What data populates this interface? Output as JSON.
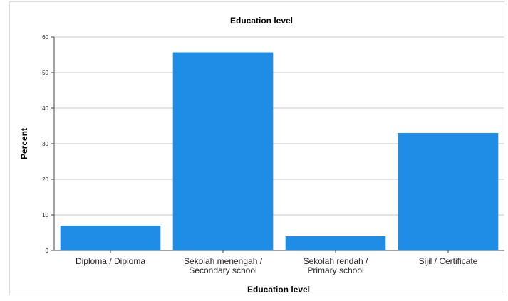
{
  "chart_data": {
    "type": "bar",
    "title": "Education level",
    "xlabel": "Education level",
    "ylabel": "Percent",
    "categories": [
      [
        "Diploma / Diploma"
      ],
      [
        "Sekolah menengah /",
        "Secondary school"
      ],
      [
        "Sekolah rendah /",
        "Primary school"
      ],
      [
        "Sijil / Certificate"
      ]
    ],
    "values": [
      7,
      55.7,
      4,
      33
    ],
    "ylim": [
      0,
      60
    ],
    "yticks": [
      0,
      10,
      20,
      30,
      40,
      50,
      60
    ],
    "grid": true,
    "bar_color": "#1f8ce6"
  }
}
